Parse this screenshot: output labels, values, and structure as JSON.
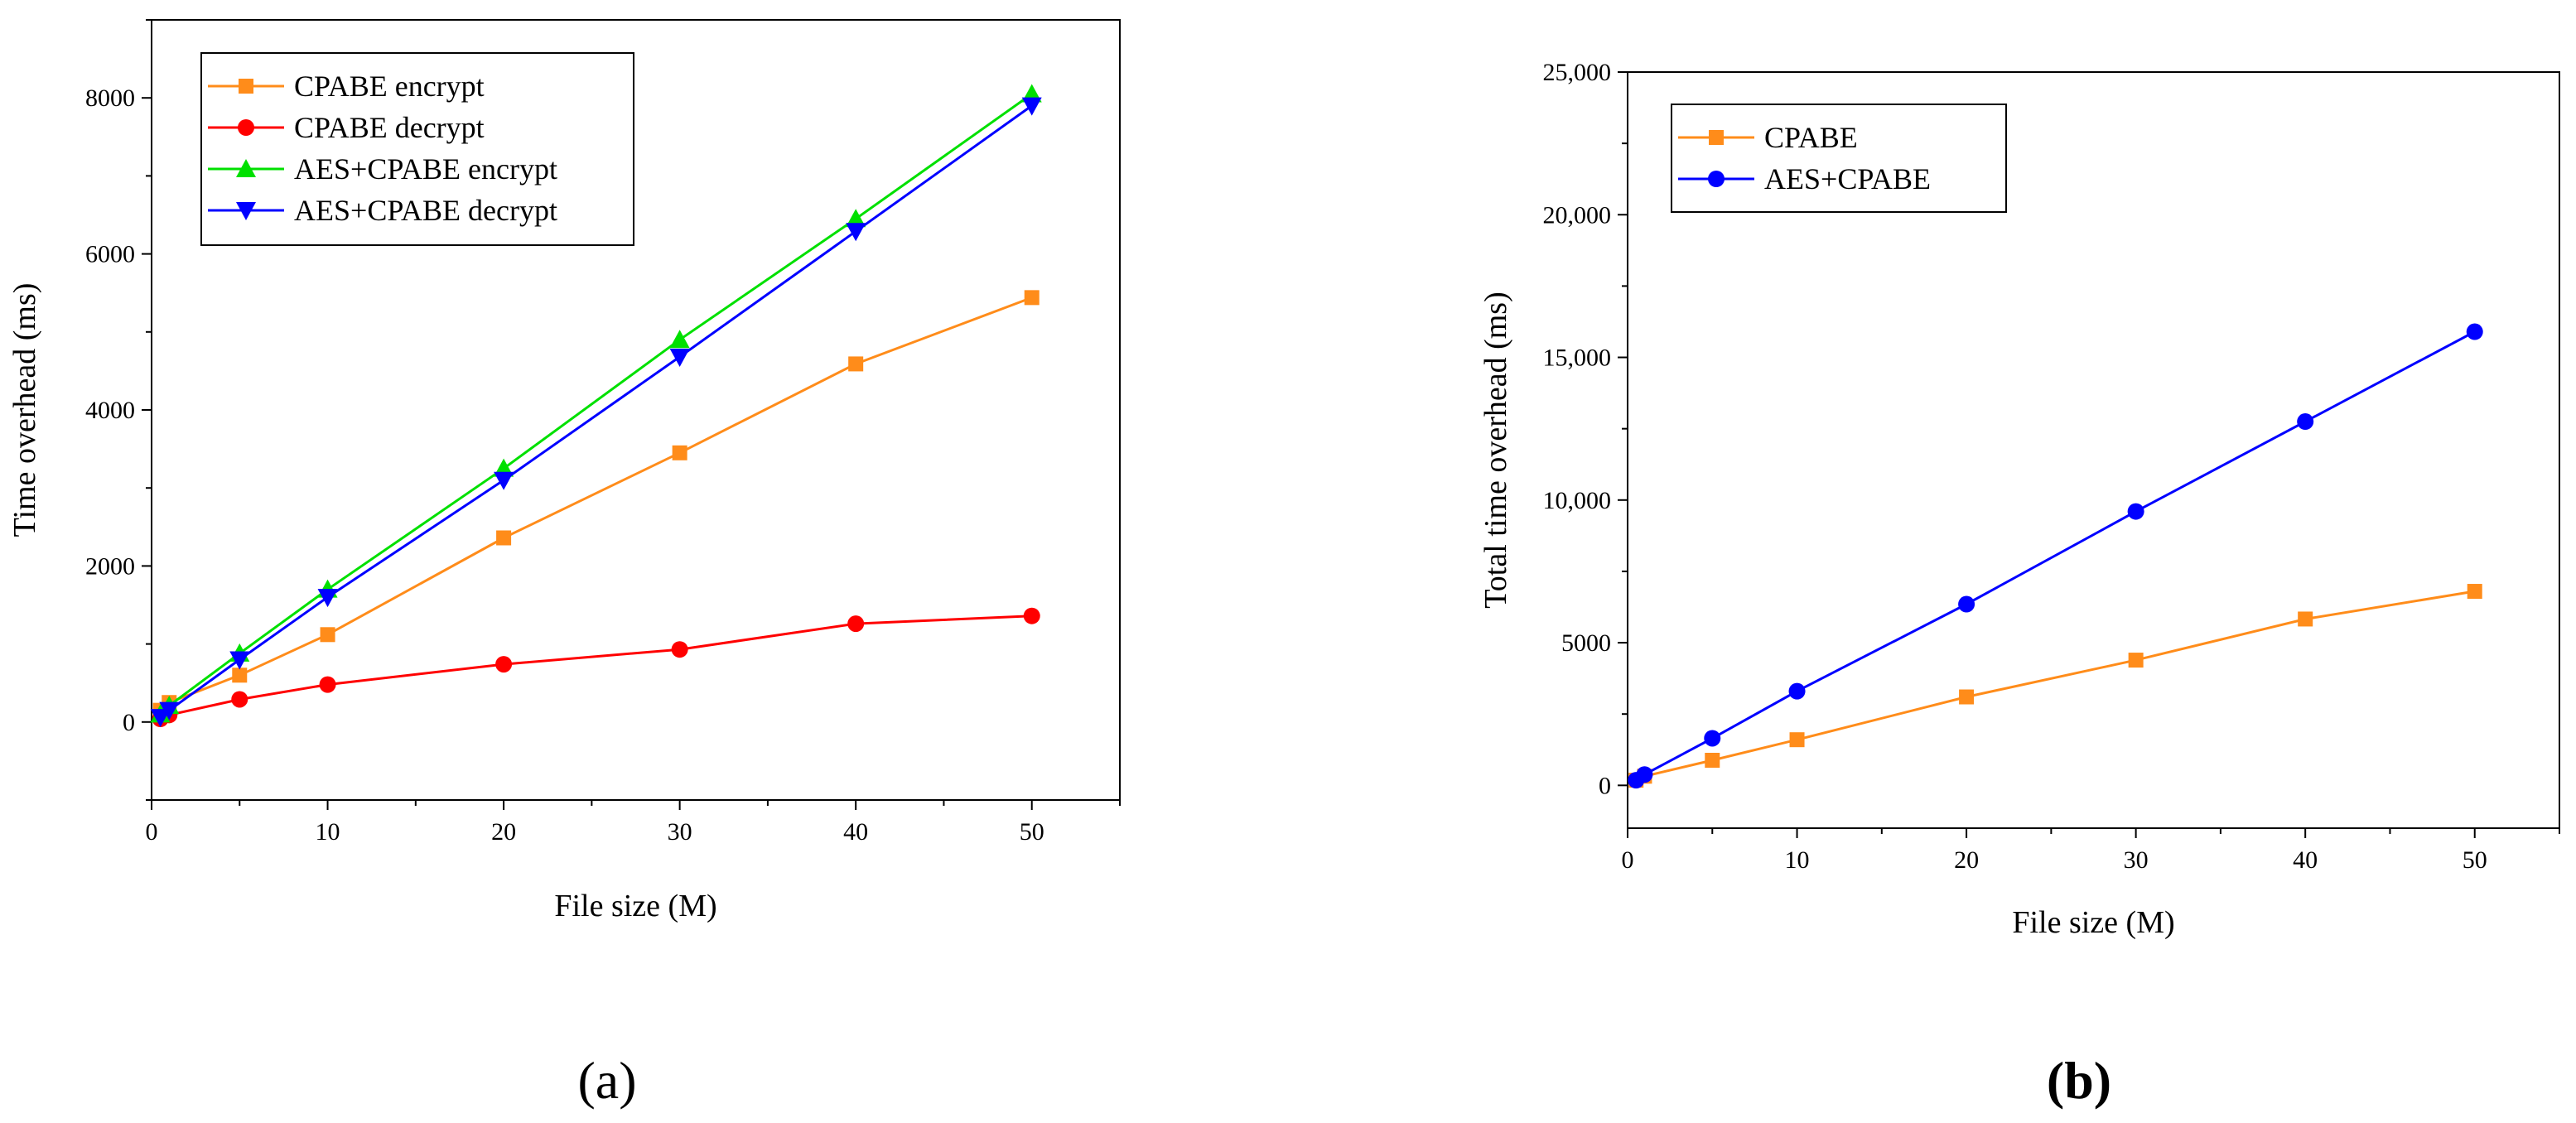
{
  "chart_data": [
    {
      "type": "line",
      "panel_label": "a",
      "xlabel": "File size (M)",
      "ylabel": "Time overhead (ms)",
      "xlim": [
        0,
        55
      ],
      "ylim": [
        -1000,
        9000
      ],
      "xticks": [
        0,
        10,
        20,
        30,
        40,
        50
      ],
      "yticks": [
        0,
        2000,
        4000,
        6000,
        8000
      ],
      "ytick_labels": [
        "0",
        "2000",
        "4000",
        "6000",
        "8000"
      ],
      "legend_position": "top-left",
      "series": [
        {
          "name": "CPABE encrypt",
          "color": "#FF8C1A",
          "marker": "square",
          "x": [
            0.5,
            1,
            5,
            10,
            20,
            30,
            40,
            50
          ],
          "y": [
            150,
            250,
            600,
            1120,
            2360,
            3450,
            4590,
            5440
          ]
        },
        {
          "name": "CPABE decrypt",
          "color": "#FF0000",
          "marker": "circle",
          "x": [
            0.5,
            1,
            5,
            10,
            20,
            30,
            40,
            50
          ],
          "y": [
            40,
            90,
            290,
            480,
            740,
            930,
            1260,
            1360
          ]
        },
        {
          "name": "AES+CPABE encrypt",
          "color": "#00E000",
          "marker": "triangle-up",
          "x": [
            0.5,
            1,
            5,
            10,
            20,
            30,
            40,
            50
          ],
          "y": [
            100,
            210,
            880,
            1700,
            3250,
            4900,
            6450,
            8050
          ]
        },
        {
          "name": "AES+CPABE decrypt",
          "color": "#0000FF",
          "marker": "triangle-down",
          "x": [
            0.5,
            1,
            5,
            10,
            20,
            30,
            40,
            50
          ],
          "y": [
            60,
            150,
            800,
            1600,
            3100,
            4680,
            6290,
            7900
          ]
        }
      ]
    },
    {
      "type": "line",
      "panel_label": "b",
      "xlabel": "File size (M)",
      "ylabel": "Total time overhead (ms)",
      "xlim": [
        0,
        55
      ],
      "ylim": [
        -1500,
        25000
      ],
      "xticks": [
        0,
        10,
        20,
        30,
        40,
        50
      ],
      "yticks": [
        0,
        5000,
        10000,
        15000,
        20000,
        25000
      ],
      "ytick_labels": [
        "0",
        "5000",
        "10,000",
        "15,000",
        "20,000",
        "25,000"
      ],
      "legend_position": "top-left",
      "series": [
        {
          "name": "CPABE",
          "color": "#FF8C1A",
          "marker": "square",
          "x": [
            0.5,
            1,
            5,
            10,
            20,
            30,
            40,
            50
          ],
          "y": [
            180,
            320,
            880,
            1600,
            3100,
            4390,
            5830,
            6800
          ]
        },
        {
          "name": "AES+CPABE",
          "color": "#0000FF",
          "marker": "circle",
          "x": [
            0.5,
            1,
            5,
            10,
            20,
            30,
            40,
            50
          ],
          "y": [
            180,
            380,
            1650,
            3300,
            6350,
            9600,
            12750,
            15900
          ]
        }
      ]
    }
  ]
}
